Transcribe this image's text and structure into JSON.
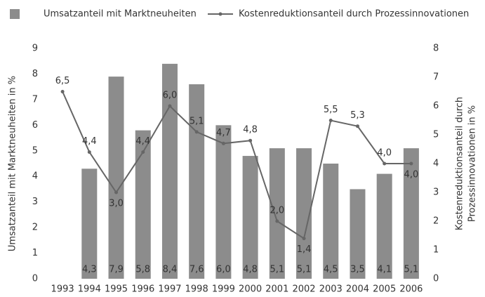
{
  "chart_data": {
    "type": "bar",
    "categories": [
      "1993",
      "1994",
      "1995",
      "1996",
      "1997",
      "1998",
      "1999",
      "2000",
      "2001",
      "2002",
      "2003",
      "2004",
      "2005",
      "2006"
    ],
    "y_label": "Umsatzanteil mit Marktneuheiten in %",
    "y2_label": [
      "Kostenreduktionsanteil durch",
      "Prozessinnovationen in %"
    ],
    "ylim": [
      0,
      9
    ],
    "yticks": [
      0,
      1,
      2,
      3,
      4,
      5,
      6,
      7,
      8,
      9
    ],
    "y2lim": [
      0,
      8
    ],
    "y2ticks": [
      0,
      1,
      2,
      3,
      4,
      5,
      6,
      7,
      8
    ],
    "series": [
      {
        "name": "Umsatzanteil mit Marktneuheiten",
        "type": "bar",
        "color": "#8c8c8c",
        "values": [
          null,
          4.3,
          7.9,
          5.8,
          8.4,
          7.6,
          6.0,
          4.8,
          5.1,
          5.1,
          4.5,
          3.5,
          4.1,
          5.1
        ],
        "value_labels": [
          null,
          "4,3",
          "7,9",
          "5,8",
          "8,4",
          "7,6",
          "6,0",
          "4,8",
          "5,1",
          "5,1",
          "4,5",
          "3,5",
          "4,1",
          "5,1"
        ]
      },
      {
        "name": "Kostenreduktionsanteil durch Prozessinnovationen",
        "type": "line",
        "axis": "y2",
        "color": "#666666",
        "values": [
          6.5,
          4.4,
          3.0,
          4.4,
          6.0,
          5.1,
          4.7,
          4.8,
          2.0,
          1.4,
          5.5,
          5.3,
          4.0,
          4.0
        ],
        "value_labels": [
          "6,5",
          "4,4",
          "3,0",
          "4,4",
          "6,0",
          "5,1",
          "4,7",
          "4,8",
          "2,0",
          "1,4",
          "5,5",
          "5,3",
          "4,0",
          "4,0"
        ]
      }
    ]
  }
}
